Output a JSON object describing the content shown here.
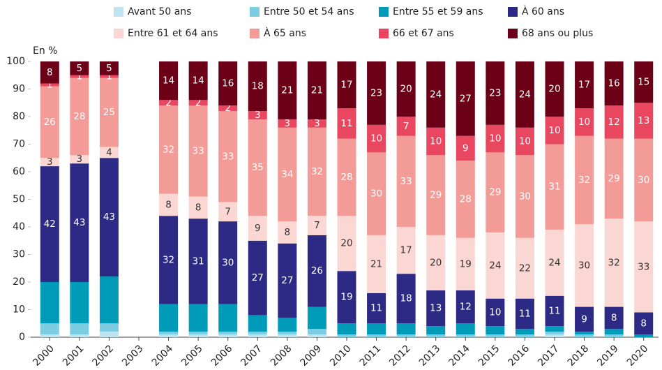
{
  "chart_data": {
    "type": "stacked_bar",
    "y_label": "En %",
    "categories": [
      "2000",
      "2001",
      "2002",
      "2003",
      "2004",
      "2005",
      "2006",
      "2007",
      "2008",
      "2009",
      "2010",
      "2011",
      "2012",
      "2013",
      "2014",
      "2015",
      "2016",
      "2017",
      "2018",
      "2019",
      "2020"
    ],
    "ylim": [
      0,
      100
    ],
    "yticks": [
      0,
      10,
      20,
      30,
      40,
      50,
      60,
      70,
      80,
      90,
      100
    ],
    "series": [
      {
        "name": "Avant 50 ans",
        "color": "#bfe4f0",
        "show_labels": false,
        "values": [
          1,
          1,
          2,
          null,
          1,
          1,
          1,
          1,
          1,
          1,
          0,
          0,
          0,
          0,
          0,
          0,
          0,
          1,
          0,
          0,
          0
        ]
      },
      {
        "name": "Entre 50 et 54 ans",
        "color": "#7dcde2",
        "show_labels": false,
        "values": [
          4,
          4,
          3,
          null,
          1,
          1,
          1,
          1,
          1,
          2,
          1,
          1,
          1,
          1,
          1,
          1,
          1,
          1,
          1,
          1,
          0
        ]
      },
      {
        "name": "Entre 55 et 59 ans",
        "color": "#009bb8",
        "show_labels": false,
        "values": [
          15,
          15,
          17,
          null,
          10,
          10,
          10,
          6,
          5,
          8,
          4,
          4,
          4,
          3,
          4,
          3,
          2,
          2,
          1,
          2,
          1
        ]
      },
      {
        "name": "À 60 ans",
        "color": "#2d2a86",
        "show_labels": true,
        "values": [
          42,
          43,
          43,
          null,
          32,
          31,
          30,
          27,
          27,
          26,
          19,
          11,
          18,
          13,
          12,
          10,
          11,
          11,
          9,
          8,
          8
        ]
      },
      {
        "name": "Entre 61 et 64 ans",
        "color": "#fbd7d3",
        "show_labels": true,
        "values": [
          3,
          3,
          4,
          null,
          8,
          8,
          7,
          9,
          8,
          7,
          20,
          21,
          17,
          20,
          19,
          24,
          22,
          24,
          30,
          32,
          33
        ]
      },
      {
        "name": "À 65 ans",
        "color": "#f39b97",
        "show_labels": true,
        "values": [
          26,
          28,
          25,
          null,
          32,
          33,
          33,
          35,
          34,
          32,
          28,
          30,
          33,
          29,
          28,
          29,
          30,
          31,
          32,
          29,
          30
        ]
      },
      {
        "name": "66 et 67 ans",
        "color": "#e9475f",
        "show_labels": true,
        "values": [
          1,
          1,
          1,
          null,
          2,
          2,
          2,
          3,
          3,
          3,
          11,
          10,
          7,
          10,
          9,
          10,
          10,
          10,
          10,
          12,
          13
        ]
      },
      {
        "name": "68 ans ou plus",
        "color": "#6b0016",
        "show_labels": true,
        "values": [
          8,
          5,
          5,
          null,
          14,
          14,
          16,
          18,
          21,
          21,
          17,
          23,
          20,
          24,
          27,
          23,
          24,
          20,
          17,
          16,
          15
        ]
      }
    ]
  }
}
